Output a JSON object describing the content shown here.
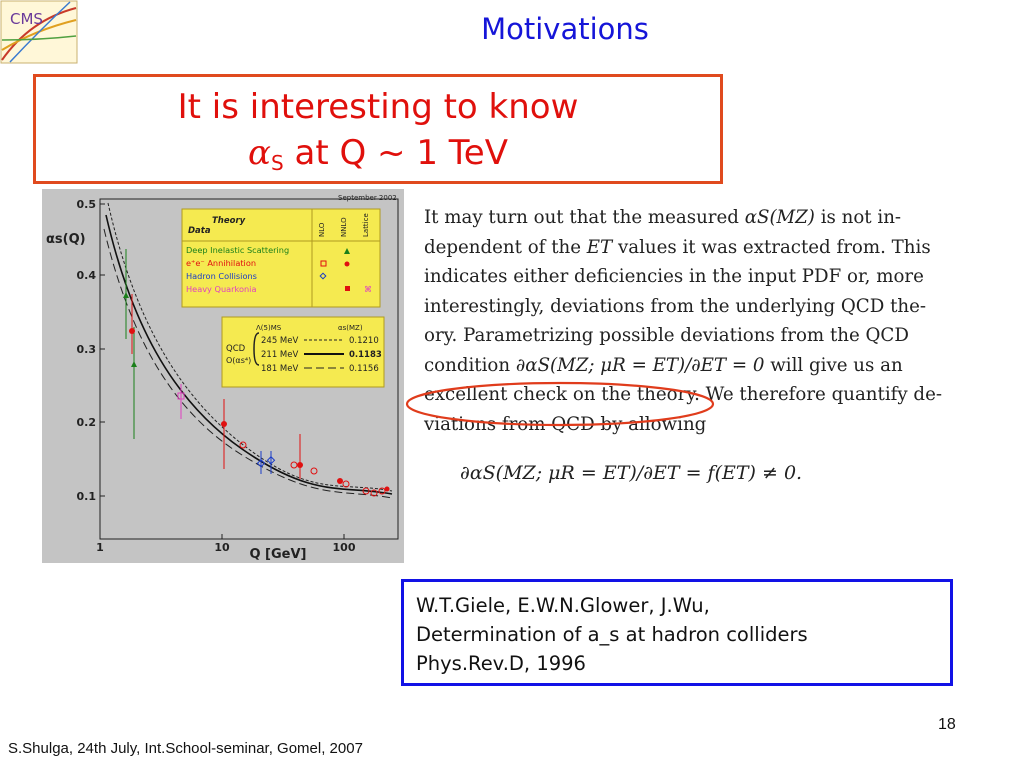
{
  "slide": {
    "title": "Motivations",
    "callout_line1": "It is interesting to know",
    "callout_alpha": "α",
    "callout_alpha_sub": "S",
    "callout_line2": " at Q ~ 1 TeV",
    "page_number": "18",
    "footer": "S.Shulga, 24th July, Int.School-seminar, Gomel, 2007"
  },
  "logo": {
    "text": "CMS"
  },
  "figure": {
    "date": "September 2002",
    "ylabel": "αs(Q)",
    "xlabel": "Q [GeV]",
    "yticks": [
      "0.5",
      "0.4",
      "0.3",
      "0.2",
      "0.1"
    ],
    "xticks": [
      "1",
      "10",
      "100"
    ],
    "legend_head_data": "Data",
    "legend_head_theory": "Theory",
    "legend_cols": [
      "NLO",
      "NNLO",
      "Lattice"
    ],
    "legend_rows": [
      {
        "label": "Deep Inelastic Scattering",
        "color": "#1a7f1a"
      },
      {
        "label": "e⁺e⁻ Annihilation",
        "color": "#e01010"
      },
      {
        "label": "Hadron Collisions",
        "color": "#1a3cc8"
      },
      {
        "label": "Heavy Quarkonia",
        "color": "#e040c0"
      }
    ],
    "qcd_label": "QCD",
    "order_label": "O(αs⁴)",
    "lambda_head": "Λ(5)MS",
    "alpha_head": "αs(MZ)",
    "qcd_rows": [
      {
        "lambda": "245 MeV",
        "alpha": "0.1210"
      },
      {
        "lambda": "211 MeV",
        "alpha": "0.1183"
      },
      {
        "lambda": "181 MeV",
        "alpha": "0.1156"
      }
    ]
  },
  "excerpt": {
    "l1a": "It may turn out that the measured ",
    "l1m": "αS(MZ)",
    "l1b": " is not in-",
    "l2a": "dependent of the ",
    "l2m": "ET",
    "l2b": " values it was extracted from.  This",
    "l3": "indicates either deficiencies in the input PDF or, more",
    "l4": "interestingly, deviations from the underlying QCD the-",
    "l5": "ory.  Parametrizing possible deviations from the QCD",
    "l6a": "condition ",
    "l6m": "∂αS(MZ; μR = ET)/∂ET = 0",
    "l6b": " will give us an",
    "l7": "excellent check on the theory.  We therefore quantify de-",
    "l8": "viations from QCD by allowing",
    "equation": "∂αS(MZ; μR = ET)/∂ET = f(ET) ≠ 0."
  },
  "reference": {
    "line1": "W.T.Giele, E.W.N.Glower, J.Wu,",
    "line2": "Determination of a_s at hadron colliders",
    "line3": "Phys.Rev.D, 1996"
  },
  "colors": {
    "title": "#1515d8",
    "callout_border": "#e04a1e",
    "callout_text": "#e0100c",
    "ref_border": "#1212e6",
    "ellipse": "#e03c1c"
  }
}
